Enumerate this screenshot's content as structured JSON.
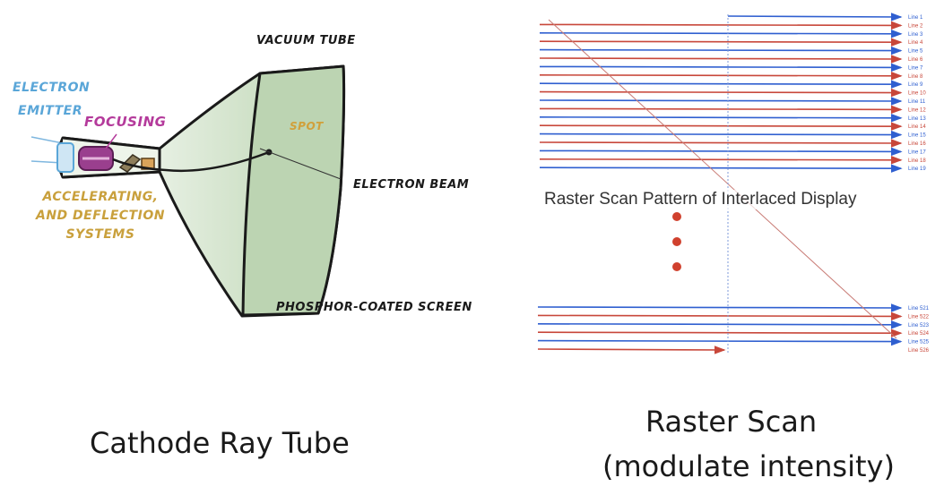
{
  "crt": {
    "labels": {
      "electron_emitter_1": "Electron",
      "electron_emitter_2": "Emitter",
      "focusing": "Focusing",
      "accel_1": "Accelerating,",
      "accel_2": "and Deflection",
      "accel_3": "Systems",
      "vacuum_tube": "Vacuum Tube",
      "spot": "Spot",
      "electron_beam": "Electron Beam",
      "phosphor_screen": "Phosphor-Coated Screen"
    },
    "caption": "Cathode Ray Tube"
  },
  "raster": {
    "title": "Raster Scan Pattern of Interlaced Display",
    "top_line_labels": [
      "Line 1",
      "Line 2",
      "Line 3",
      "Line 4",
      "Line 5",
      "Line 6",
      "Line 7",
      "Line 8",
      "Line 9",
      "Line 10",
      "Line 11",
      "Line 12",
      "Line 13",
      "Line 14",
      "Line 15",
      "Line 16",
      "Line 17",
      "Line 18",
      "Line 19"
    ],
    "bottom_line_labels": [
      "Line 521",
      "Line 522",
      "Line 523",
      "Line 524",
      "Line 525",
      "Line 526"
    ],
    "caption_1": "Raster Scan",
    "caption_2": "(modulate intensity)"
  },
  "colors": {
    "blue_line": "#2f5fd0",
    "red_line": "#c8473a",
    "screen_fill": "#bcd4b2",
    "dot": "#d0412e"
  }
}
